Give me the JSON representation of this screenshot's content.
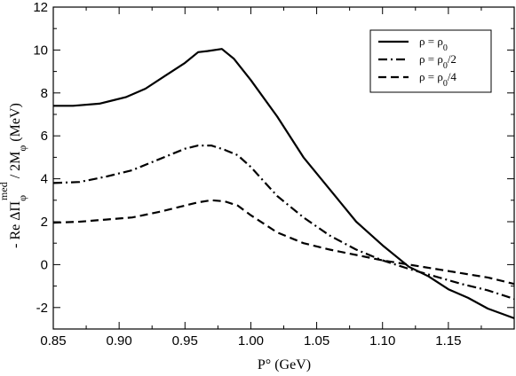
{
  "chart_data": {
    "type": "line",
    "xlabel": "P° (GeV)",
    "ylabel": "- Re ΔΠφmed / 2Mφ (MeV)",
    "xlim": [
      0.85,
      1.2
    ],
    "ylim": [
      -3,
      12
    ],
    "x_ticks": [
      "0.85",
      "0.90",
      "0.95",
      "1.00",
      "1.05",
      "1.10",
      "1.15"
    ],
    "y_ticks": [
      "-2",
      "0",
      "2",
      "4",
      "6",
      "8",
      "10",
      "12"
    ],
    "grid": false,
    "legend_position": "top-right",
    "series": [
      {
        "name": "ρ = ρ0",
        "dash": "solid",
        "x": [
          0.85,
          0.865,
          0.885,
          0.905,
          0.92,
          0.935,
          0.95,
          0.96,
          0.967,
          0.978,
          0.987,
          1.0,
          1.02,
          1.04,
          1.06,
          1.08,
          1.1,
          1.12,
          1.135,
          1.15,
          1.165,
          1.18,
          1.2
        ],
        "y": [
          7.4,
          7.4,
          7.5,
          7.8,
          8.2,
          8.8,
          9.4,
          9.9,
          9.95,
          10.05,
          9.6,
          8.6,
          6.9,
          5.0,
          3.5,
          2.0,
          0.9,
          -0.1,
          -0.55,
          -1.15,
          -1.55,
          -2.05,
          -2.5
        ]
      },
      {
        "name": "ρ = ρ0/2",
        "dash": "dash-dot",
        "x": [
          0.85,
          0.87,
          0.89,
          0.91,
          0.93,
          0.95,
          0.96,
          0.97,
          0.98,
          0.99,
          1.0,
          1.02,
          1.04,
          1.06,
          1.08,
          1.1,
          1.12,
          1.14,
          1.16,
          1.18,
          1.2
        ],
        "y": [
          3.8,
          3.85,
          4.1,
          4.4,
          4.9,
          5.4,
          5.55,
          5.55,
          5.35,
          5.1,
          4.55,
          3.2,
          2.2,
          1.35,
          0.7,
          0.2,
          -0.2,
          -0.55,
          -0.9,
          -1.2,
          -1.6
        ]
      },
      {
        "name": "ρ = ρ0/4",
        "dash": "dashed",
        "x": [
          0.85,
          0.87,
          0.89,
          0.91,
          0.93,
          0.95,
          0.96,
          0.97,
          0.98,
          0.99,
          1.0,
          1.02,
          1.04,
          1.06,
          1.08,
          1.1,
          1.12,
          1.14,
          1.16,
          1.18,
          1.2
        ],
        "y": [
          1.95,
          2.0,
          2.1,
          2.2,
          2.45,
          2.75,
          2.9,
          3.0,
          2.95,
          2.75,
          2.3,
          1.5,
          1.0,
          0.7,
          0.45,
          0.2,
          0.0,
          -0.2,
          -0.4,
          -0.6,
          -0.9
        ]
      }
    ]
  }
}
